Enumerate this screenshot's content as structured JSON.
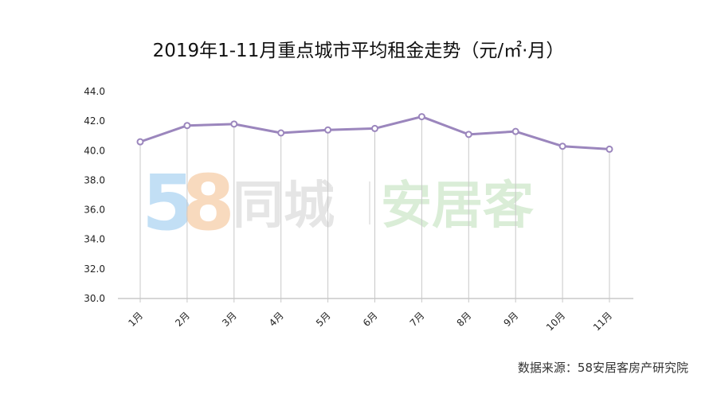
{
  "chart_data": {
    "type": "line",
    "title": "2019年1-11月重点城市平均租金走势（元/㎡·月）",
    "categories": [
      "1月",
      "2月",
      "3月",
      "4月",
      "5月",
      "6月",
      "7月",
      "8月",
      "9月",
      "10月",
      "11月"
    ],
    "series": [
      {
        "values": [
          40.6,
          41.7,
          41.8,
          41.2,
          41.4,
          41.5,
          42.3,
          41.1,
          41.3,
          40.3,
          40.1
        ]
      }
    ],
    "ylim": [
      30.0,
      44.0
    ],
    "yticks": [
      "30.0",
      "32.0",
      "34.0",
      "36.0",
      "38.0",
      "40.0",
      "42.0",
      "44.0"
    ],
    "xlabel": "",
    "ylabel": "",
    "grid": "vertical drop lines at each category",
    "legend": "none",
    "line_color": "#9b86bd",
    "axis_color": "#c8c8c8"
  },
  "source_note": "数据来源：58安居客房产研究院",
  "watermark": {
    "logo_digit_5": "5",
    "logo_digit_8": "8",
    "text_left": "同城",
    "text_right": "安居客",
    "colors": {
      "five": "#bcdcf5",
      "eight": "#f8d6b8",
      "left": "#e3e3e3",
      "right": "#d7ecd3"
    }
  }
}
